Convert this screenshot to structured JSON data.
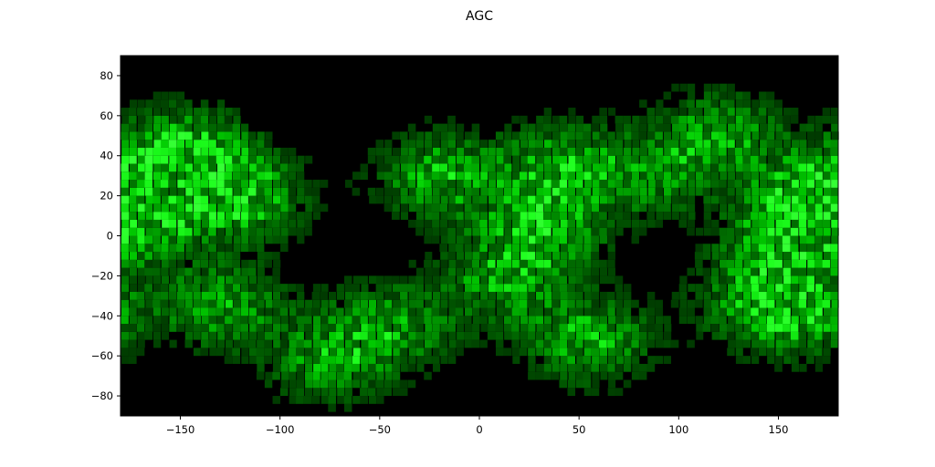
{
  "chart_data": {
    "type": "heatmap",
    "title": "AGC",
    "xlabel": "",
    "ylabel": "",
    "xlim": [
      -180,
      180
    ],
    "ylim": [
      -90,
      90
    ],
    "x_ticks": [
      -150,
      -100,
      -50,
      0,
      50,
      100,
      150
    ],
    "x_tick_labels": [
      "−150",
      "−100",
      "−50",
      "0",
      "50",
      "100",
      "150"
    ],
    "y_ticks": [
      -80,
      -60,
      -40,
      -20,
      0,
      20,
      40,
      60,
      80
    ],
    "y_tick_labels": [
      "−80",
      "−60",
      "−40",
      "−20",
      "0",
      "20",
      "40",
      "60",
      "80"
    ],
    "grid": false,
    "legend": "none",
    "colors": {
      "background": "#000000",
      "low": "#003300",
      "high": "#22ff22"
    },
    "hotspots": [
      {
        "lon": -172,
        "lat": 10,
        "intensity": 1.0
      },
      {
        "lon": -140,
        "lat": 30,
        "intensity": 0.8
      },
      {
        "lon": -120,
        "lat": 18,
        "intensity": 0.85
      },
      {
        "lon": -130,
        "lat": -35,
        "intensity": 0.8
      },
      {
        "lon": -150,
        "lat": 45,
        "intensity": 0.7
      },
      {
        "lon": -20,
        "lat": 30,
        "intensity": 0.85
      },
      {
        "lon": 30,
        "lat": 2,
        "intensity": 1.0
      },
      {
        "lon": 40,
        "lat": 35,
        "intensity": 0.8
      },
      {
        "lon": -45,
        "lat": -45,
        "intensity": 0.75
      },
      {
        "lon": 55,
        "lat": -52,
        "intensity": 0.85
      },
      {
        "lon": 155,
        "lat": 0,
        "intensity": 0.95
      },
      {
        "lon": 170,
        "lat": 25,
        "intensity": 0.8
      },
      {
        "lon": 120,
        "lat": 50,
        "intensity": 0.8
      },
      {
        "lon": 140,
        "lat": -30,
        "intensity": 0.7
      },
      {
        "lon": 160,
        "lat": -40,
        "intensity": 0.75
      },
      {
        "lon": 10,
        "lat": -25,
        "intensity": 0.7
      },
      {
        "lon": -75,
        "lat": -62,
        "intensity": 0.7
      },
      {
        "lon": 85,
        "lat": 30,
        "intensity": 0.6
      }
    ]
  }
}
